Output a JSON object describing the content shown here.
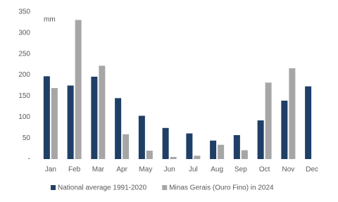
{
  "chart_data": {
    "type": "bar",
    "annotation": "mm",
    "categories": [
      "Jan",
      "Feb",
      "Mar",
      "Apr",
      "May",
      "Jun",
      "Jul",
      "Aug",
      "Sep",
      "Oct",
      "Nov",
      "Dec"
    ],
    "series": [
      {
        "name": "National average 1991-2020",
        "color": "#1f3f66",
        "values": [
          197,
          175,
          196,
          145,
          103,
          74,
          61,
          44,
          57,
          92,
          139,
          173
        ]
      },
      {
        "name": "Minas Gerais (Ouro Fino) in 2024",
        "color": "#a6a6a6",
        "values": [
          169,
          331,
          222,
          59,
          20,
          5,
          8,
          34,
          21,
          182,
          216,
          null
        ]
      }
    ],
    "ylim": [
      0,
      350
    ],
    "yticks": [
      {
        "value": 0,
        "label": "-"
      },
      50,
      100,
      150,
      200,
      250,
      300,
      350
    ],
    "grid": false,
    "legend": "bottom"
  }
}
